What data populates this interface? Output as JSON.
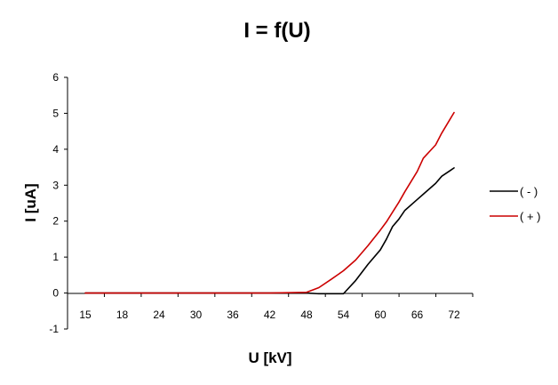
{
  "chart_data": {
    "type": "line",
    "title": "I = f(U)",
    "xlabel": "U [kV]",
    "ylabel": "I [uA]",
    "categories": [
      15,
      18,
      24,
      30,
      36,
      42,
      48,
      54,
      60,
      66,
      72
    ],
    "ylim": [
      -1,
      6
    ],
    "yticks": [
      -1,
      0,
      1,
      2,
      3,
      4,
      5,
      6
    ],
    "legend_position": "right",
    "grid": false,
    "series": [
      {
        "name": "( - )",
        "color": "#000000",
        "x": [
          15,
          18,
          24,
          30,
          36,
          42,
          48,
          50,
          52,
          54,
          56,
          58,
          60,
          61,
          62,
          63,
          64,
          66,
          67,
          69,
          70,
          72
        ],
        "y": [
          0,
          0,
          0,
          0,
          0,
          0,
          0,
          -0.02,
          -0.02,
          -0.02,
          0.35,
          0.8,
          1.2,
          1.5,
          1.85,
          2.05,
          2.3,
          2.6,
          2.75,
          3.05,
          3.25,
          3.48
        ]
      },
      {
        "name": "( + )",
        "color": "#cc0000",
        "x": [
          15,
          18,
          24,
          30,
          36,
          42,
          48,
          50,
          52,
          54,
          56,
          58,
          60,
          61,
          62,
          63,
          64,
          66,
          67,
          69,
          70,
          72
        ],
        "y": [
          0,
          0,
          0,
          0,
          0,
          0,
          0.02,
          0.15,
          0.38,
          0.62,
          0.92,
          1.32,
          1.75,
          1.98,
          2.25,
          2.52,
          2.82,
          3.38,
          3.75,
          4.12,
          4.45,
          5.02
        ]
      }
    ]
  }
}
